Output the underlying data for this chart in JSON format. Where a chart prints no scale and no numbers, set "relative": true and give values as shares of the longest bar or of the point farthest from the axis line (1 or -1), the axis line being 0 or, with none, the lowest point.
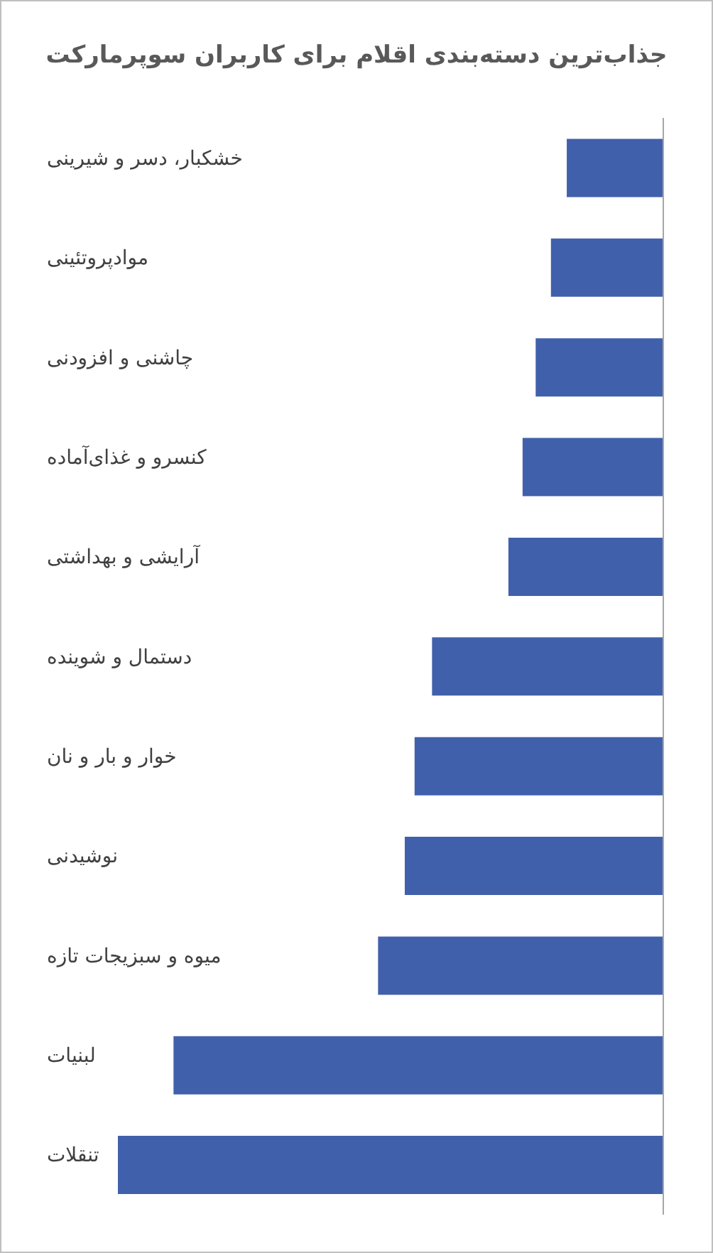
{
  "chart_data": {
    "type": "bar",
    "orientation": "horizontal",
    "relative": true,
    "title": "جذاب‌ترین دسته‌بندی اقلام برای کاربران سوپرمارکت",
    "categories": [
      "خشکبار، دسر و شیرینی",
      "موادپروتئینی",
      "چاشنی و افزودنی",
      "کنسرو و غذای‌آماده",
      "آرایشی و بهداشتی",
      "دستمال و شوینده",
      "خوار و بار و نان",
      "نوشیدنی",
      "میوه و سبزیجات تازه",
      "لبنیات",
      "تنقلات"
    ],
    "values": [
      0.177,
      0.206,
      0.234,
      0.258,
      0.284,
      0.424,
      0.456,
      0.474,
      0.523,
      0.898,
      1
    ],
    "color": "#4160ab"
  }
}
